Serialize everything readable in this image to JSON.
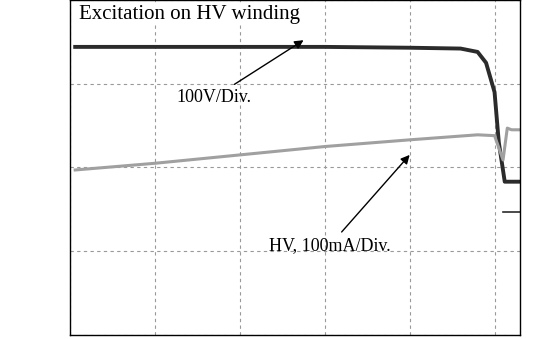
{
  "chart_data": {
    "type": "line",
    "title": "Excitation on HV winding",
    "series": [
      {
        "color": "#2b2b2b",
        "x": [
          0.06,
          1,
          2,
          3,
          4,
          4.6,
          4.8,
          4.9,
          5.0,
          5.05,
          5.12,
          5.3
        ],
        "values": [
          3.44,
          3.44,
          3.44,
          3.44,
          3.43,
          3.42,
          3.38,
          3.25,
          2.9,
          2.3,
          1.83,
          1.83
        ]
      },
      {
        "color": "#a0a0a0",
        "x": [
          0.06,
          1,
          2,
          3,
          4,
          4.8,
          5.0,
          5.1,
          5.15,
          5.2,
          5.3
        ],
        "values": [
          1.97,
          2.05,
          2.15,
          2.25,
          2.33,
          2.39,
          2.38,
          2.09,
          2.47,
          2.45,
          2.45
        ]
      },
      {
        "color": "#2b2b2b",
        "x": [
          5.1,
          5.3
        ],
        "values": [
          1.47,
          1.47
        ]
      }
    ],
    "annotations": [
      {
        "text": "100V/Div.",
        "x": 1.7,
        "y": 2.84,
        "target_x": 2.75,
        "target_y": 3.52
      },
      {
        "text": "HV, 100mA/Div.",
        "x": 3.06,
        "y": 1.07,
        "target_x": 4.0,
        "target_y": 2.15
      }
    ],
    "xlim": [
      0,
      5.3
    ],
    "ylim": [
      0,
      4
    ],
    "xticks": [
      0,
      1,
      2,
      3,
      4,
      5
    ],
    "yticks": [
      0,
      1,
      2,
      3,
      4
    ],
    "grid": true,
    "tick_labels": false
  }
}
